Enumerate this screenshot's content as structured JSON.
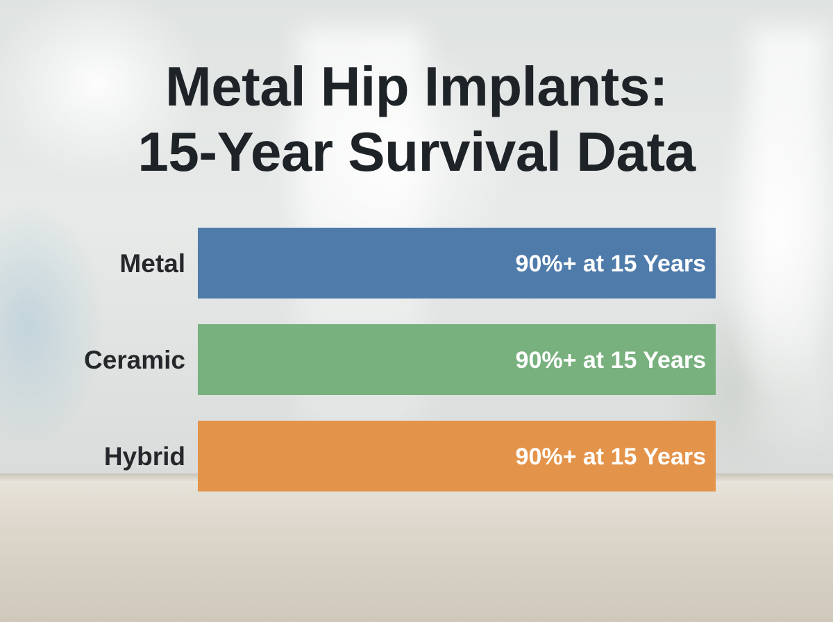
{
  "chart_data": {
    "type": "bar",
    "orientation": "horizontal",
    "title_lines": [
      "Metal Hip Implants:",
      "15-Year Survival Data"
    ],
    "categories": [
      "Metal",
      "Ceramic",
      "Hybrid"
    ],
    "values": [
      90,
      90,
      90
    ],
    "value_labels": [
      "90%+ at 15 Years",
      "90%+ at 15 Years",
      "90%+ at 15 Years"
    ],
    "colors": [
      "#4f7bab",
      "#78b07e",
      "#e4944a"
    ],
    "xlim": [
      0,
      90
    ],
    "grid": false,
    "legend": "none"
  }
}
